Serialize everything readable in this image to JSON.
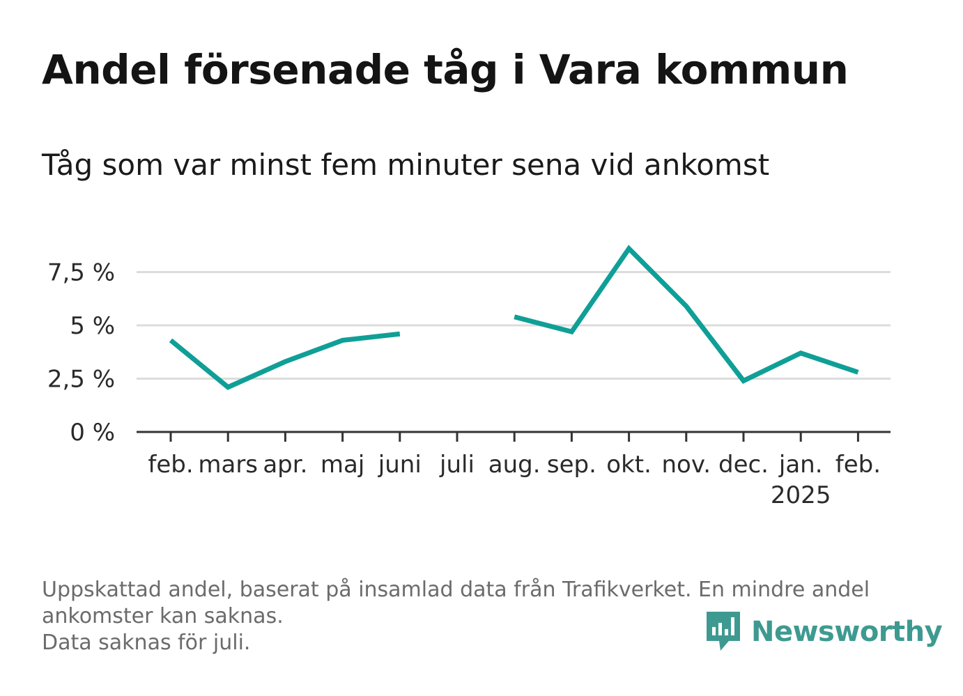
{
  "title": "Andel försenade tåg i Vara kommun",
  "subtitle": "Tåg som var minst fem minuter sena vid ankomst",
  "footer": {
    "line1": "Uppskattad andel, baserat på insamlad data från Trafikverket. En mindre andel",
    "line2": "ankomster kan saknas.",
    "line3": "Data saknas för juli."
  },
  "brand": {
    "name": "Newsworthy",
    "icon": "bar-chart-speech-bubble-icon",
    "color": "#3e9a90"
  },
  "chart_data": {
    "type": "line",
    "categories": [
      "feb.",
      "mars",
      "apr.",
      "maj",
      "juni",
      "juli",
      "aug.",
      "sep.",
      "okt.",
      "nov.",
      "dec.",
      "jan.",
      "feb."
    ],
    "year_label": {
      "index": 11,
      "text": "2025"
    },
    "series": [
      {
        "values": [
          4.3,
          2.1,
          3.3,
          4.3,
          4.6,
          null,
          5.4,
          4.7,
          8.6,
          5.9,
          2.4,
          3.7,
          2.8
        ],
        "color": "#0f9f97"
      }
    ],
    "yticks": [
      0,
      2.5,
      5,
      7.5
    ],
    "ytick_labels": [
      "0 %",
      "2,5 %",
      "5 %",
      "7,5 %"
    ],
    "ylim": [
      0,
      9
    ],
    "grid": true,
    "legend": "none",
    "missing": "juli"
  }
}
